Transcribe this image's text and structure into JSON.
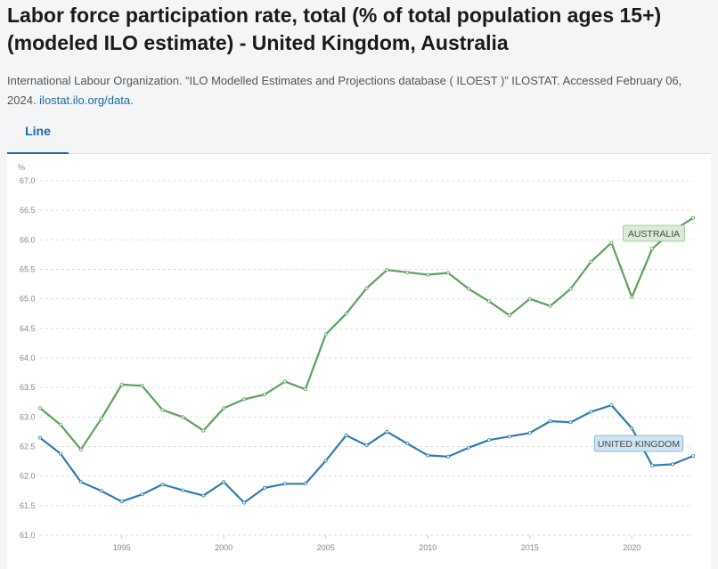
{
  "header": {
    "title": "Labor force participation rate, total (% of total population ages 15+) (modeled ILO estimate) - United Kingdom, Australia",
    "source_text": "International Labour Organization. “ILO Modelled Estimates and Projections database ( ILOEST )” ILOSTAT. Accessed February 06, 2024.",
    "source_link": "ilostat.ilo.org/data."
  },
  "tabs": [
    {
      "label": "Line",
      "active": true
    }
  ],
  "chart_data": {
    "type": "line",
    "ylabel": "%",
    "xlabel": "",
    "xlim": [
      1991,
      2023
    ],
    "ylim": [
      61.0,
      67.0
    ],
    "yticks": [
      61.0,
      61.5,
      62.0,
      62.5,
      63.0,
      63.5,
      64.0,
      64.5,
      65.0,
      65.5,
      66.0,
      66.5,
      67.0
    ],
    "xticks": [
      1995,
      2000,
      2005,
      2010,
      2015,
      2020
    ],
    "grid": true,
    "x": [
      1991,
      1992,
      1993,
      1994,
      1995,
      1996,
      1997,
      1998,
      1999,
      2000,
      2001,
      2002,
      2003,
      2004,
      2005,
      2006,
      2007,
      2008,
      2009,
      2010,
      2011,
      2012,
      2013,
      2014,
      2015,
      2016,
      2017,
      2018,
      2019,
      2020,
      2021,
      2022,
      2023
    ],
    "series": [
      {
        "name": "AUSTRALIA",
        "color": "#5ba35b",
        "label_bg": "#d8ecd6",
        "values": [
          63.15,
          62.87,
          62.45,
          62.97,
          63.55,
          63.53,
          63.12,
          63.0,
          62.77,
          63.15,
          63.3,
          63.38,
          63.6,
          63.47,
          64.4,
          64.75,
          65.18,
          65.49,
          65.45,
          65.41,
          65.44,
          65.17,
          64.96,
          64.72,
          65.0,
          64.88,
          65.17,
          65.63,
          65.95,
          65.03,
          65.85,
          66.15,
          66.37
        ]
      },
      {
        "name": "UNITED KINGDOM",
        "color": "#2f7ead",
        "label_bg": "#cfe3f1",
        "values": [
          62.65,
          62.38,
          61.9,
          61.75,
          61.57,
          61.69,
          61.86,
          61.76,
          61.67,
          61.9,
          61.55,
          61.8,
          61.87,
          61.87,
          62.26,
          62.69,
          62.52,
          62.75,
          62.55,
          62.35,
          62.33,
          62.48,
          62.61,
          62.67,
          62.73,
          62.93,
          62.91,
          63.09,
          63.2,
          62.81,
          62.18,
          62.2,
          62.34
        ]
      }
    ]
  }
}
